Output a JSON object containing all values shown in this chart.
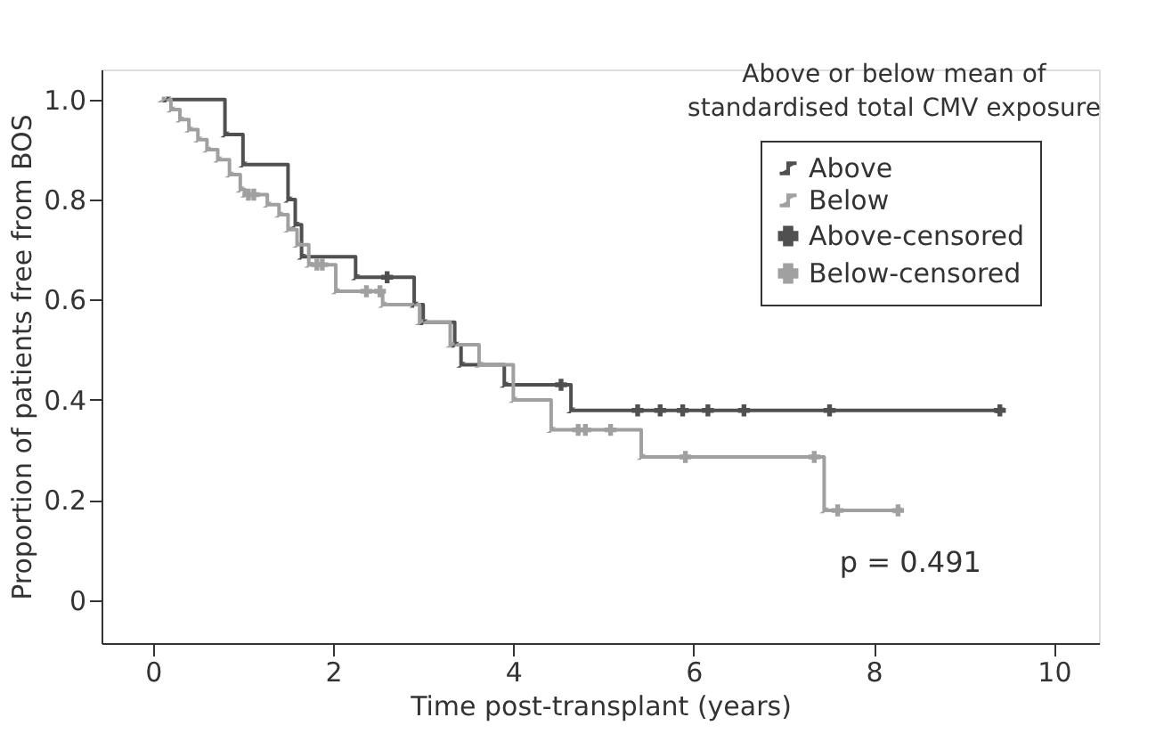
{
  "chart_data": {
    "type": "step",
    "xlabel": "Time post-transplant (years)",
    "ylabel": "Proportion of patients free from BOS",
    "legend_title": "Above or below mean of standardised total CMV exposure",
    "xlim": [
      -0.57,
      10.5
    ],
    "xticks": [
      0,
      2,
      4,
      6,
      8,
      10
    ],
    "ylim": [
      -0.086,
      1.06
    ],
    "yticks": [
      {
        "value": 0,
        "label": "0"
      },
      0.2,
      0.4,
      0.6,
      0.8,
      {
        "value": 1,
        "label": "1.0"
      }
    ],
    "grid": false,
    "legend": "top right",
    "annotations": [
      "p = 0.491"
    ],
    "series": [
      {
        "name": "Above",
        "type": "step",
        "color": "#505050",
        "x": [
          0.15,
          0.8,
          1.0,
          1.5,
          1.58,
          1.65,
          2.25,
          2.9,
          3.0,
          3.35,
          3.42,
          3.9,
          4.64,
          9.4
        ],
        "values": [
          1.0,
          0.93,
          0.87,
          0.8,
          0.75,
          0.686,
          0.645,
          0.59,
          0.555,
          0.51,
          0.47,
          0.43,
          0.379,
          0.379
        ]
      },
      {
        "name": "Below",
        "type": "step",
        "color": "#a0a0a0",
        "x": [
          0.1,
          0.2,
          0.3,
          0.4,
          0.5,
          0.6,
          0.72,
          0.85,
          0.97,
          1.02,
          1.27,
          1.4,
          1.5,
          1.6,
          1.73,
          2.03,
          2.55,
          2.96,
          3.3,
          3.62,
          4.0,
          4.42,
          5.42,
          7.45,
          8.27
        ],
        "values": [
          1.0,
          0.98,
          0.96,
          0.94,
          0.92,
          0.9,
          0.88,
          0.85,
          0.82,
          0.81,
          0.79,
          0.77,
          0.74,
          0.71,
          0.67,
          0.617,
          0.59,
          0.555,
          0.51,
          0.47,
          0.4,
          0.34,
          0.286,
          0.179,
          0.179
        ]
      },
      {
        "name": "Above-censored",
        "type": "scatter",
        "marker": "cross",
        "color": "#505050",
        "x": [
          2.6,
          4.53,
          5.38,
          5.63,
          5.88,
          6.16,
          6.56,
          7.51,
          9.4
        ],
        "values": [
          0.645,
          0.43,
          0.379,
          0.379,
          0.379,
          0.379,
          0.379,
          0.379,
          0.379
        ]
      },
      {
        "name": "Below-censored",
        "type": "scatter",
        "marker": "cross",
        "color": "#a0a0a0",
        "x": [
          1.06,
          1.12,
          1.82,
          1.88,
          2.37,
          2.52,
          4.72,
          4.8,
          5.08,
          5.91,
          7.34,
          7.6,
          8.27
        ],
        "values": [
          0.81,
          0.81,
          0.67,
          0.67,
          0.617,
          0.617,
          0.34,
          0.34,
          0.34,
          0.286,
          0.286,
          0.179,
          0.179
        ]
      }
    ]
  }
}
